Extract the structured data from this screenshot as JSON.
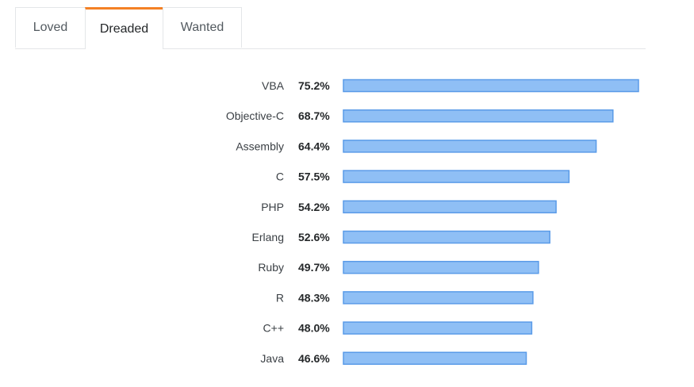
{
  "tabs": [
    {
      "label": "Loved",
      "active": false
    },
    {
      "label": "Dreaded",
      "active": true
    },
    {
      "label": "Wanted",
      "active": false
    }
  ],
  "colors": {
    "bar_fill": "#8fbff5",
    "bar_stroke": "#5a9be8",
    "active_tab_accent": "#f48024",
    "label_text": "#3b4045",
    "value_text": "#242729"
  },
  "chart_data": {
    "type": "bar",
    "orientation": "horizontal",
    "title": "",
    "xlabel": "",
    "ylabel": "",
    "unit": "%",
    "categories": [
      "VBA",
      "Objective-C",
      "Assembly",
      "C",
      "PHP",
      "Erlang",
      "Ruby",
      "R",
      "C++",
      "Java"
    ],
    "values": [
      75.2,
      68.7,
      64.4,
      57.5,
      54.2,
      52.6,
      49.7,
      48.3,
      48.0,
      46.6
    ],
    "value_labels": [
      "75.2%",
      "68.7%",
      "64.4%",
      "57.5%",
      "54.2%",
      "52.6%",
      "49.7%",
      "48.3%",
      "48.0%",
      "46.6%"
    ],
    "grid": false,
    "legend": "none"
  }
}
